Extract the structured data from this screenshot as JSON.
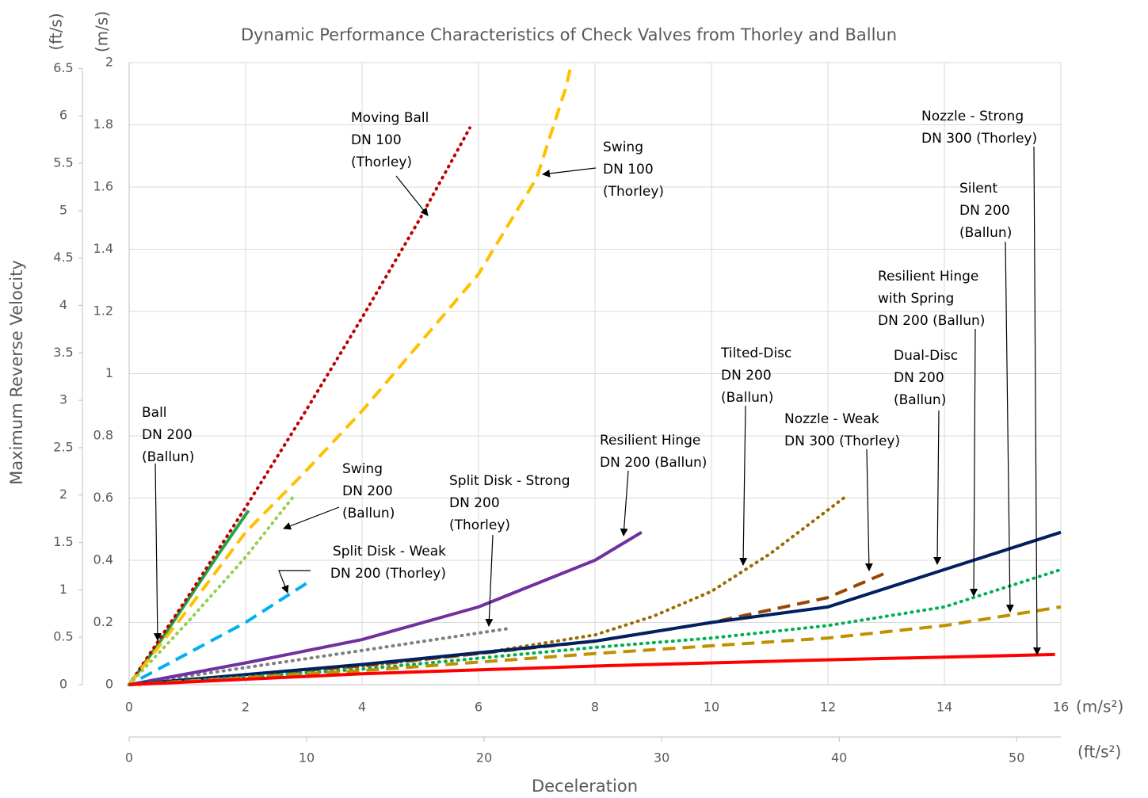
{
  "chart_data": {
    "type": "line",
    "title": "Dynamic Performance Characteristics of Check Valves from Thorley and Ballun",
    "y_label": "Maximum Reverse Velocity",
    "y_unit": "(m/s)",
    "y2_unit": "(ft/s)",
    "x_label": "Deceleration",
    "x_unit": "(m/s²)",
    "x2_unit": "(ft/s²)",
    "xlim": [
      0,
      16
    ],
    "xticks": [
      0,
      2,
      4,
      6,
      8,
      10,
      12,
      14,
      16
    ],
    "x2lim": [
      0,
      52.49
    ],
    "x2ticks": [
      0,
      10,
      20,
      30,
      40,
      50
    ],
    "ylim": [
      0,
      2
    ],
    "yticks": [
      0,
      0.2,
      0.4,
      0.6,
      0.8,
      1,
      1.2,
      1.4,
      1.6,
      1.8,
      2
    ],
    "y2lim": [
      0,
      6.5617
    ],
    "y2ticks": [
      0,
      0.5,
      1,
      1.5,
      2,
      2.5,
      3,
      3.5,
      4,
      4.5,
      5,
      5.5,
      6,
      6.5
    ],
    "grid": true,
    "series": [
      {
        "label": [
          "Ball",
          "DN 200",
          "(Ballun)"
        ],
        "color": "#1fa64a",
        "style": "solid",
        "x": [
          0,
          0.5,
          1,
          1.5,
          2.05
        ],
        "values": [
          0,
          0.13,
          0.27,
          0.41,
          0.56
        ]
      },
      {
        "label": [
          "Moving Ball",
          "DN 100",
          "(Thorley)"
        ],
        "color": "#c00000",
        "style": "dotted",
        "x": [
          0,
          1,
          2,
          3,
          4,
          5,
          5.85
        ],
        "values": [
          0,
          0.28,
          0.57,
          0.87,
          1.18,
          1.5,
          1.79
        ]
      },
      {
        "label": [
          "Swing",
          "DN 100",
          "(Thorley)"
        ],
        "color": "#ffc000",
        "style": "dashed",
        "x": [
          0,
          1,
          2,
          3,
          4,
          5,
          6,
          7,
          7.5,
          7.6
        ],
        "values": [
          0,
          0.24,
          0.49,
          0.68,
          0.88,
          1.1,
          1.32,
          1.63,
          1.92,
          2.0
        ]
      },
      {
        "label": [
          "Swing",
          "DN 200",
          "(Ballun)"
        ],
        "color": "#92d050",
        "style": "dotted",
        "x": [
          0,
          1,
          2,
          2.8
        ],
        "values": [
          0,
          0.2,
          0.41,
          0.6
        ]
      },
      {
        "label": [
          "Split Disk - Weak",
          "DN 200 (Thorley)"
        ],
        "color": "#00b0f0",
        "style": "dashed",
        "x": [
          0.2,
          1,
          2,
          3.08
        ],
        "values": [
          0.02,
          0.1,
          0.2,
          0.33
        ]
      },
      {
        "label": [
          "Split Disk - Strong",
          "DN 200",
          "(Thorley)"
        ],
        "color": "#7f7f7f",
        "style": "dotted",
        "x": [
          0,
          2,
          4,
          6.5
        ],
        "values": [
          0,
          0.055,
          0.11,
          0.18
        ]
      },
      {
        "label": [
          "Resilient Hinge",
          "DN 200 (Ballun)"
        ],
        "color": "#7030a0",
        "style": "solid",
        "x": [
          0,
          2,
          4,
          6,
          8,
          8.8
        ],
        "values": [
          0,
          0.07,
          0.145,
          0.25,
          0.4,
          0.49
        ]
      },
      {
        "label": [
          "Tilted-Disc",
          "DN 200",
          "(Ballun)"
        ],
        "color": "#9c6a00",
        "style": "dotted",
        "x": [
          0,
          2,
          4,
          6,
          8,
          9,
          10,
          11,
          12.27
        ],
        "values": [
          0,
          0.03,
          0.06,
          0.1,
          0.16,
          0.22,
          0.3,
          0.42,
          0.6
        ]
      },
      {
        "label": [
          "Nozzle - Weak",
          "DN 300 (Thorley)"
        ],
        "color": "#974706",
        "style": "dashed",
        "x": [
          0,
          4,
          8,
          10,
          12,
          13
        ],
        "values": [
          0,
          0.06,
          0.14,
          0.2,
          0.28,
          0.36
        ]
      },
      {
        "label": [
          "Dual-Disc",
          "DN 200",
          "(Ballun)"
        ],
        "color": "#002060",
        "style": "solid",
        "x": [
          0,
          4,
          8,
          10,
          12,
          14,
          16
        ],
        "values": [
          0,
          0.065,
          0.14,
          0.2,
          0.25,
          0.37,
          0.49
        ]
      },
      {
        "label": [
          "Resilient Hinge",
          "with Spring",
          "DN 200 (Ballun)"
        ],
        "color": "#00b050",
        "style": "dotted",
        "x": [
          0,
          4,
          8,
          10,
          12,
          14,
          16
        ],
        "values": [
          0,
          0.05,
          0.12,
          0.15,
          0.19,
          0.25,
          0.37
        ]
      },
      {
        "label": [
          "Silent",
          "DN 200",
          "(Ballun)"
        ],
        "color": "#bf9000",
        "style": "dashed",
        "x": [
          0,
          4,
          8,
          12,
          14,
          16
        ],
        "values": [
          0,
          0.045,
          0.1,
          0.15,
          0.19,
          0.25
        ]
      },
      {
        "label": [
          "Nozzle - Strong",
          "DN 300 (Thorley)"
        ],
        "color": "#ff0000",
        "style": "solid",
        "x": [
          0,
          4,
          8,
          12,
          15.9
        ],
        "values": [
          0,
          0.035,
          0.06,
          0.08,
          0.097
        ]
      }
    ]
  }
}
